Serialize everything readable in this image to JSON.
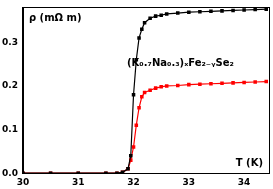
{
  "chart_data": {
    "type": "line",
    "annotation": "(K₀.₇Na₀.₃)ₓFe₂₋ᵧSe₂",
    "x_label": "T (K)",
    "y_label": "ρ (mΩ m)",
    "x": [
      30.0,
      30.5,
      31.0,
      31.5,
      31.7,
      31.8,
      31.9,
      31.95,
      32.0,
      32.05,
      32.1,
      32.15,
      32.2,
      32.3,
      32.4,
      32.5,
      32.6,
      32.8,
      33.0,
      33.2,
      33.4,
      33.6,
      33.8,
      34.0,
      34.2,
      34.4
    ],
    "series": [
      {
        "color": "#000000",
        "marker": "square",
        "values": [
          0,
          0,
          0,
          0,
          0,
          0.002,
          0.01,
          0.04,
          0.18,
          0.26,
          0.31,
          0.33,
          0.345,
          0.355,
          0.36,
          0.362,
          0.365,
          0.367,
          0.369,
          0.37,
          0.371,
          0.372,
          0.373,
          0.374,
          0.375,
          0.376
        ]
      },
      {
        "color": "#ff0000",
        "marker": "square",
        "values": [
          0,
          0,
          0,
          0,
          0,
          0.002,
          0.01,
          0.03,
          0.06,
          0.11,
          0.15,
          0.175,
          0.185,
          0.19,
          0.195,
          0.198,
          0.2,
          0.201,
          0.203,
          0.204,
          0.205,
          0.206,
          0.207,
          0.208,
          0.209,
          0.21
        ]
      }
    ],
    "xlim": [
      30,
      34.45
    ],
    "xticks": [
      30,
      31,
      32,
      33,
      34
    ],
    "ylim": [
      0,
      0.38
    ],
    "yticks": [
      {
        "value": 0,
        "label": "0.0"
      },
      {
        "value": 0.1,
        "label": "0.1"
      },
      {
        "value": 0.2,
        "label": "0.2"
      },
      {
        "value": 0.3,
        "label": "0.3"
      }
    ],
    "grid": false
  }
}
